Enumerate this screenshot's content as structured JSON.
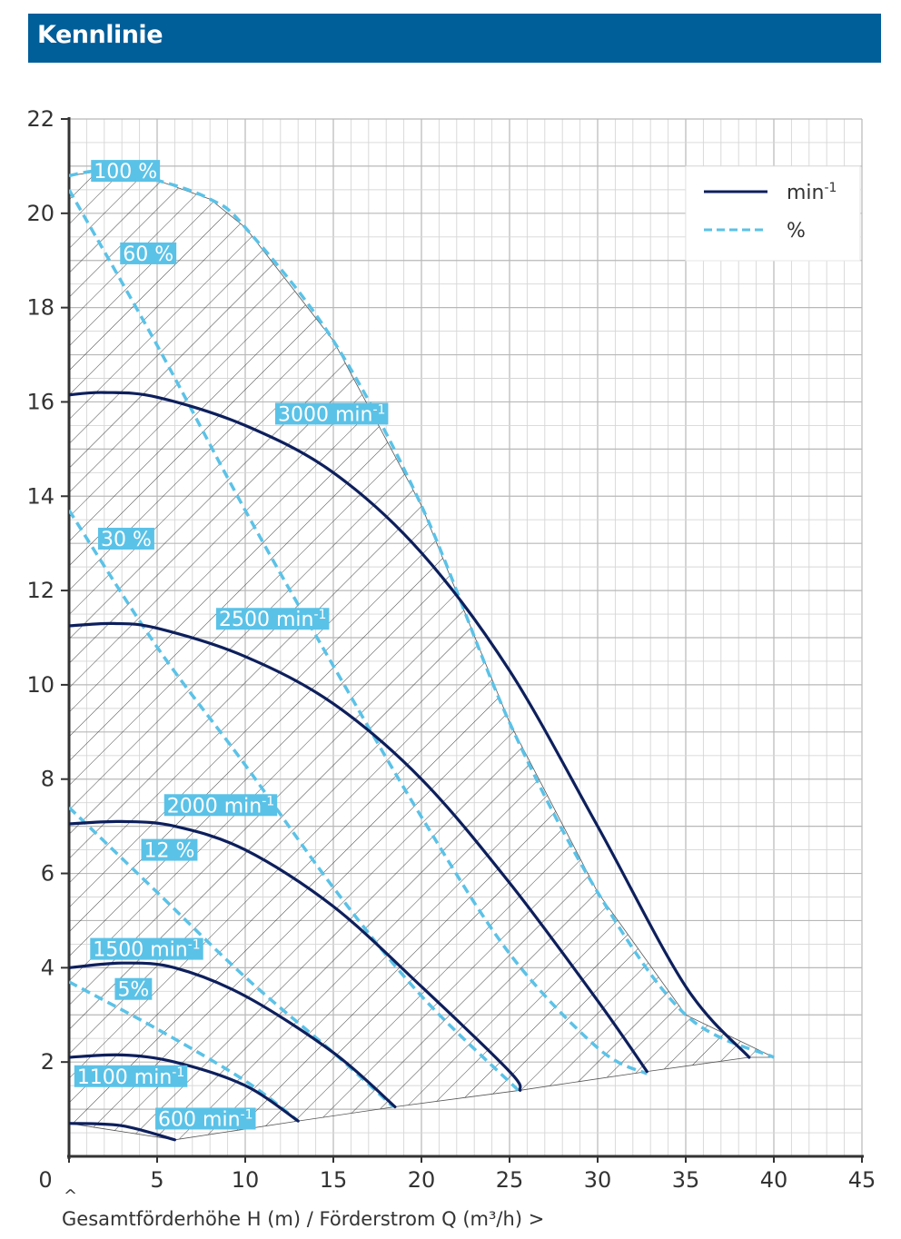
{
  "header": {
    "title": "Kennlinie"
  },
  "caption": {
    "up_marker": "^",
    "text": "Gesamtförderhöhe H (m) / Förderstrom Q (m³/h) >"
  },
  "colors": {
    "header_bg": "#005e99",
    "rpm_line": "#0d1f5c",
    "efficiency_line": "#5bc2e7",
    "label_bg": "#5bc2e7"
  },
  "chart_data": {
    "type": "line",
    "x_ticks": [
      "0",
      "5",
      "10",
      "15",
      "20",
      "25",
      "30",
      "35",
      "40",
      "45"
    ],
    "y_ticks": [
      "2",
      "4",
      "6",
      "8",
      "10",
      "12",
      "14",
      "16",
      "18",
      "20",
      "22"
    ],
    "xlim": [
      0,
      45
    ],
    "ylim": [
      0,
      22
    ],
    "grid": true,
    "legend": {
      "placement": "top-right",
      "entries": [
        {
          "label": "min",
          "sup": "-1",
          "style": "solid"
        },
        {
          "label": "%",
          "sup": "",
          "style": "dashed"
        }
      ]
    },
    "speed_curves": [
      {
        "label": "3000 min",
        "sup": "-1",
        "points": [
          [
            0,
            16.15
          ],
          [
            2,
            16.2
          ],
          [
            5,
            16.1
          ],
          [
            10,
            15.5
          ],
          [
            15,
            14.5
          ],
          [
            20,
            12.8
          ],
          [
            25,
            10.3
          ],
          [
            30,
            7.0
          ],
          [
            35,
            3.6
          ],
          [
            38.6,
            2.1
          ]
        ]
      },
      {
        "label": "2500 min",
        "sup": "-1",
        "points": [
          [
            0,
            11.25
          ],
          [
            2.5,
            11.3
          ],
          [
            5,
            11.2
          ],
          [
            10,
            10.6
          ],
          [
            15,
            9.6
          ],
          [
            20,
            8.0
          ],
          [
            25,
            5.8
          ],
          [
            30,
            3.3
          ],
          [
            32.8,
            1.8
          ]
        ]
      },
      {
        "label": "2000 min",
        "sup": "-1",
        "points": [
          [
            0,
            7.05
          ],
          [
            3,
            7.1
          ],
          [
            6,
            7.0
          ],
          [
            10,
            6.5
          ],
          [
            15,
            5.3
          ],
          [
            20,
            3.6
          ],
          [
            25,
            1.8
          ],
          [
            25.6,
            1.4
          ]
        ]
      },
      {
        "label": "1500 min",
        "sup": "-1",
        "points": [
          [
            0,
            4.0
          ],
          [
            3,
            4.1
          ],
          [
            6,
            4.0
          ],
          [
            10,
            3.4
          ],
          [
            15,
            2.2
          ],
          [
            18.5,
            1.05
          ]
        ]
      },
      {
        "label": "1100 min",
        "sup": "-1",
        "points": [
          [
            0,
            2.1
          ],
          [
            3,
            2.15
          ],
          [
            6,
            2.0
          ],
          [
            10,
            1.5
          ],
          [
            13,
            0.75
          ]
        ]
      },
      {
        "label": "600 min",
        "sup": "-1",
        "points": [
          [
            0,
            0.7
          ],
          [
            3,
            0.65
          ],
          [
            6,
            0.35
          ]
        ]
      }
    ],
    "efficiency_curves": [
      {
        "label": "100 %",
        "points": [
          [
            0,
            20.8
          ],
          [
            2,
            20.9
          ],
          [
            5,
            20.7
          ],
          [
            8,
            20.3
          ],
          [
            10,
            19.7
          ],
          [
            15,
            17.3
          ],
          [
            20,
            13.8
          ],
          [
            25,
            9.2
          ],
          [
            30,
            5.6
          ],
          [
            35,
            3.0
          ],
          [
            40,
            2.1
          ]
        ]
      },
      {
        "label": "60 %",
        "points": [
          [
            0,
            20.5
          ],
          [
            5,
            17.2
          ],
          [
            10,
            13.7
          ],
          [
            15,
            10.4
          ],
          [
            20,
            7.2
          ],
          [
            25,
            4.3
          ],
          [
            30,
            2.3
          ],
          [
            32.8,
            1.75
          ]
        ]
      },
      {
        "label": "30 %",
        "points": [
          [
            0,
            13.7
          ],
          [
            5,
            10.8
          ],
          [
            10,
            8.3
          ],
          [
            15,
            5.7
          ],
          [
            20,
            3.4
          ],
          [
            25.5,
            1.4
          ]
        ]
      },
      {
        "label": "12 %",
        "points": [
          [
            0,
            7.4
          ],
          [
            5,
            5.6
          ],
          [
            10,
            3.8
          ],
          [
            15,
            2.2
          ],
          [
            18.4,
            1.05
          ]
        ]
      },
      {
        "label": "5%",
        "points": [
          [
            0,
            3.7
          ],
          [
            5,
            2.7
          ],
          [
            10,
            1.6
          ],
          [
            13,
            0.75
          ]
        ]
      }
    ],
    "operating_area_lower_boundary": [
      [
        6,
        0.35
      ],
      [
        13,
        0.75
      ],
      [
        18.5,
        1.05
      ],
      [
        25.6,
        1.4
      ],
      [
        32.8,
        1.8
      ],
      [
        38.6,
        2.1
      ],
      [
        40,
        2.1
      ]
    ]
  }
}
